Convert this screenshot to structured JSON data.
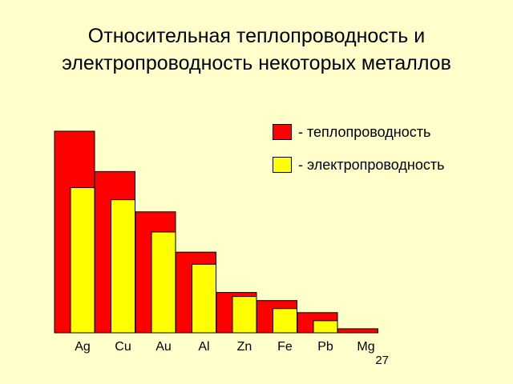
{
  "title": {
    "line1": "Относительная теплопроводность и",
    "line2": "электропроводность некоторых металлов"
  },
  "legend": [
    {
      "label": "- теплопроводность",
      "color": "#ff0000"
    },
    {
      "label": "- электропроводность",
      "color": "#ffff00"
    }
  ],
  "page_number": "27",
  "chart_data": {
    "type": "bar",
    "categories": [
      "Ag",
      "Cu",
      "Au",
      "Al",
      "Zn",
      "Fe",
      "Pb",
      "Mg"
    ],
    "series": [
      {
        "name": "- теплопроводность",
        "color": "#ff0000",
        "values": [
          100,
          80,
          60,
          40,
          20,
          16,
          10,
          2
        ]
      },
      {
        "name": "- электропроводность",
        "color": "#ffff00",
        "values": [
          72,
          66,
          50,
          34,
          18,
          12,
          6,
          0
        ]
      }
    ],
    "ylim": [
      0,
      100
    ],
    "grid": false,
    "legend_position": "top-right"
  }
}
